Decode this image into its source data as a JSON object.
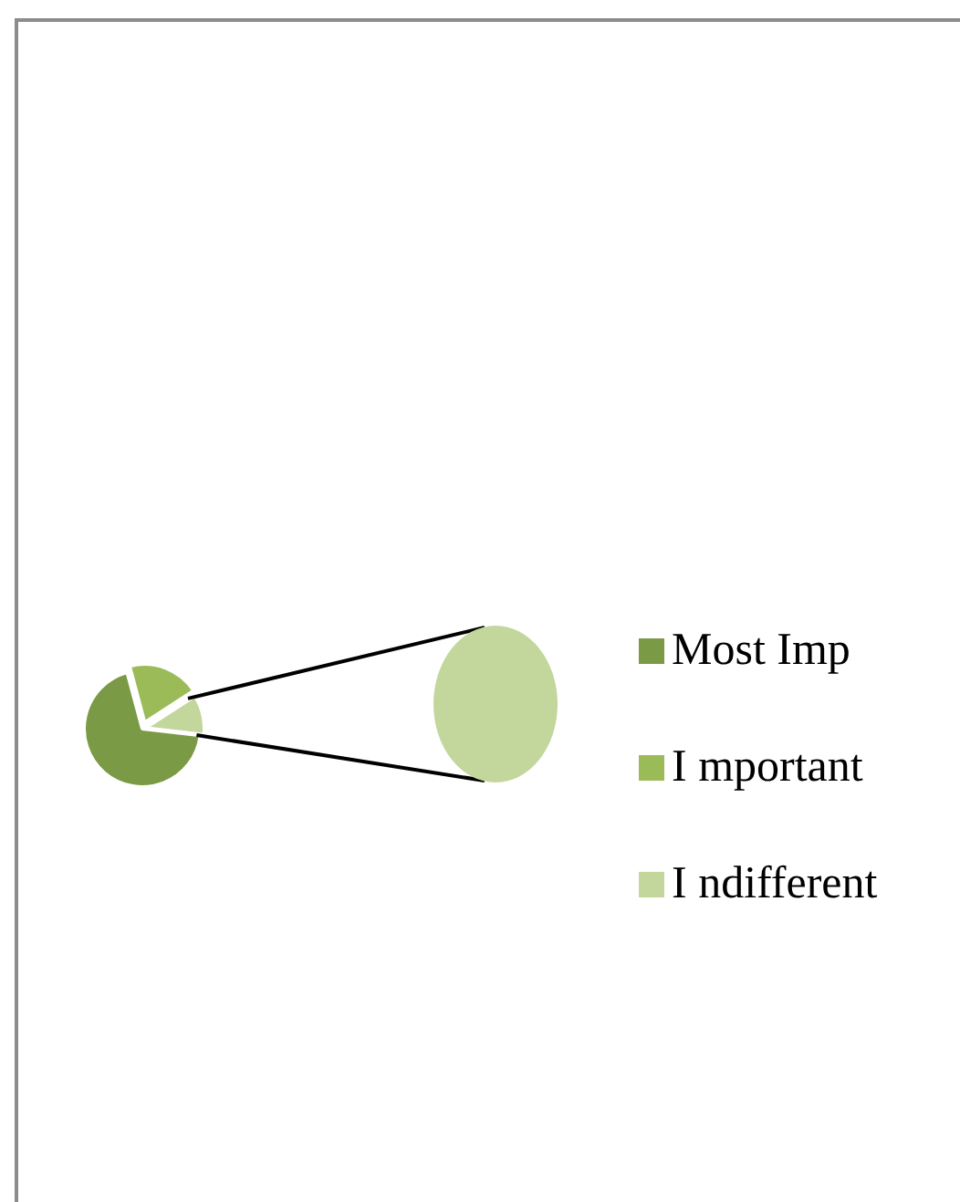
{
  "chart_data": {
    "type": "pie",
    "categories": [
      "Most Imp",
      "I mportant",
      "I ndifferent"
    ],
    "values": [
      69,
      20,
      11
    ],
    "colors": [
      "#7a9a45",
      "#9bbb59",
      "#c3d69b"
    ],
    "legend": "right"
  }
}
